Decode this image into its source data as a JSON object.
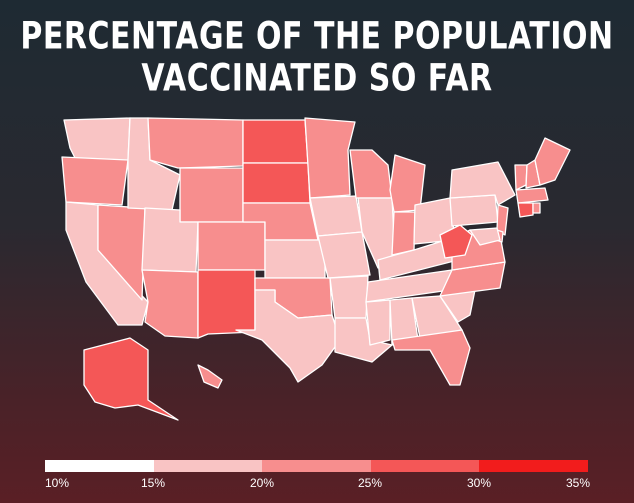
{
  "title_line1": "PERCENTAGE OF THE POPULATION",
  "title_line2": "VACCINATED SO FAR",
  "legend": {
    "ticks": [
      "10%",
      "15%",
      "20%",
      "25%",
      "30%",
      "35%"
    ],
    "colors": [
      "#ffffff",
      "#f9c4c4",
      "#f78e8e",
      "#f45757",
      "#f21c1c"
    ]
  },
  "map_data": {
    "metric": "percentage of the population vaccinated",
    "bins": [
      {
        "range": "10%-15%",
        "color": "#ffffff"
      },
      {
        "range": "15%-20%",
        "color": "#f9c4c4"
      },
      {
        "range": "20%-25%",
        "color": "#f78e8e"
      },
      {
        "range": "25%-30%",
        "color": "#f45757"
      },
      {
        "range": "30%-35%",
        "color": "#f21c1c"
      }
    ],
    "states": {
      "WA": 2,
      "OR": 3,
      "CA": 2,
      "NV": 3,
      "ID": 2,
      "MT": 3,
      "WY": 3,
      "UT": 2,
      "AZ": 3,
      "CO": 3,
      "NM": 4,
      "ND": 4,
      "SD": 4,
      "NE": 3,
      "KS": 2,
      "OK": 3,
      "TX": 2,
      "MN": 3,
      "IA": 2,
      "MO": 2,
      "AR": 2,
      "LA": 2,
      "WI": 3,
      "IL": 2,
      "MI": 3,
      "IN": 3,
      "OH": 2,
      "KY": 2,
      "TN": 2,
      "MS": 2,
      "AL": 2,
      "GA": 2,
      "FL": 3,
      "SC": 2,
      "NC": 3,
      "VA": 3,
      "WV": 4,
      "PA": 2,
      "NY": 2,
      "VT": 3,
      "NH": 3,
      "ME": 3,
      "MA": 3,
      "CT": 4,
      "RI": 3,
      "NJ": 3,
      "DE": 3,
      "MD": 2,
      "AK": 4,
      "HI": 3
    }
  }
}
